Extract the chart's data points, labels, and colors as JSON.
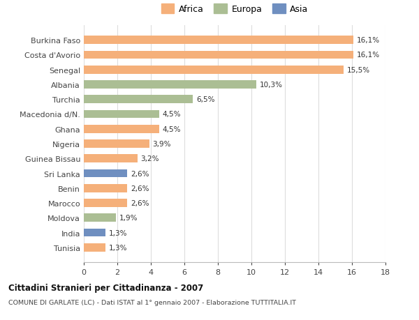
{
  "categories": [
    "Burkina Faso",
    "Costa d'Avorio",
    "Senegal",
    "Albania",
    "Turchia",
    "Macedonia d/N.",
    "Ghana",
    "Nigeria",
    "Guinea Bissau",
    "Sri Lanka",
    "Benin",
    "Marocco",
    "Moldova",
    "India",
    "Tunisia"
  ],
  "values": [
    16.1,
    16.1,
    15.5,
    10.3,
    6.5,
    4.5,
    4.5,
    3.9,
    3.2,
    2.6,
    2.6,
    2.6,
    1.9,
    1.3,
    1.3
  ],
  "continents": [
    "Africa",
    "Africa",
    "Africa",
    "Europa",
    "Europa",
    "Europa",
    "Africa",
    "Africa",
    "Africa",
    "Asia",
    "Africa",
    "Africa",
    "Europa",
    "Asia",
    "Africa"
  ],
  "labels": [
    "16,1%",
    "16,1%",
    "15,5%",
    "10,3%",
    "6,5%",
    "4,5%",
    "4,5%",
    "3,9%",
    "3,2%",
    "2,6%",
    "2,6%",
    "2,6%",
    "1,9%",
    "1,3%",
    "1,3%"
  ],
  "colors": {
    "Africa": "#F5B07A",
    "Europa": "#ABBE94",
    "Asia": "#6F8FC0"
  },
  "title": "Cittadini Stranieri per Cittadinanza - 2007",
  "subtitle": "COMUNE DI GARLATE (LC) - Dati ISTAT al 1° gennaio 2007 - Elaborazione TUTTITALIA.IT",
  "xlim": [
    0,
    18
  ],
  "xticks": [
    0,
    2,
    4,
    6,
    8,
    10,
    12,
    14,
    16,
    18
  ],
  "background_color": "#ffffff",
  "plot_bg_color": "#ffffff",
  "grid_color": "#dddddd"
}
